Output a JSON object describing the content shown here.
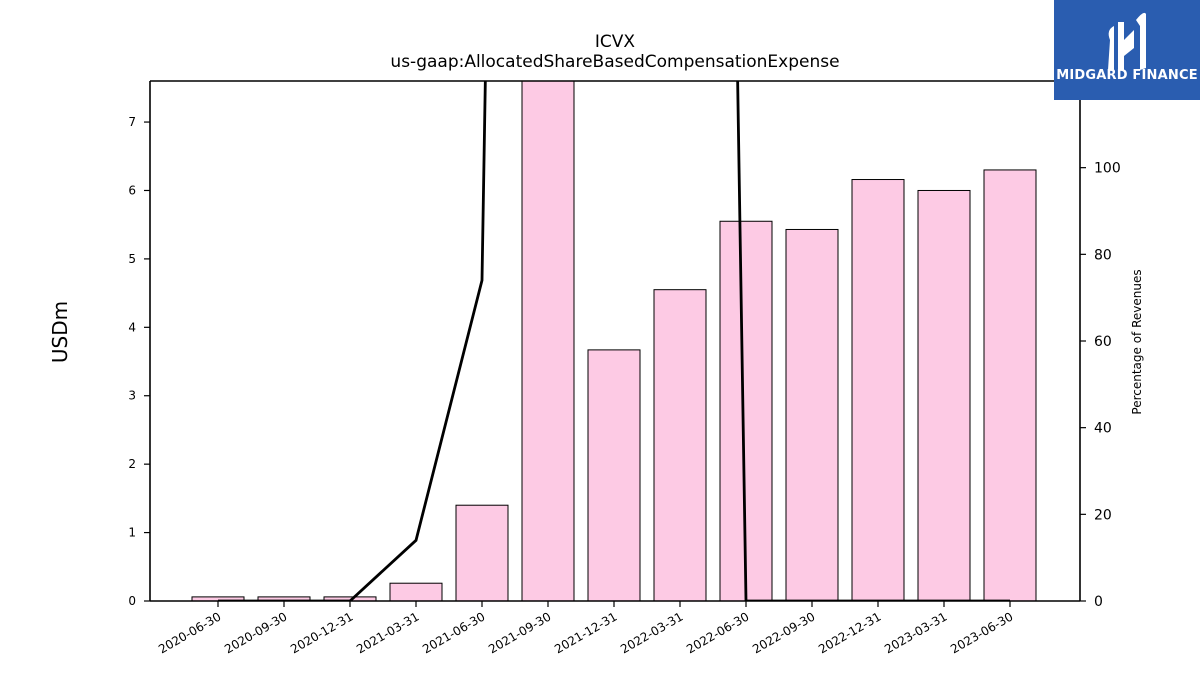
{
  "chart_data": {
    "type": "bar",
    "title": "ICVX",
    "subtitle": "us-gaap:AllocatedShareBasedCompensationExpense",
    "ylabel": "USDm",
    "ylabel_right": "Percentage of Revenues",
    "categories": [
      "2020-06-30",
      "2020-09-30",
      "2020-12-31",
      "2021-03-31",
      "2021-06-30",
      "2021-09-30",
      "2021-12-31",
      "2022-03-31",
      "2022-06-30",
      "2022-09-30",
      "2022-12-31",
      "2023-03-31",
      "2023-06-30"
    ],
    "series": [
      {
        "axis": "left",
        "kind": "bar",
        "values": [
          0.06,
          0.06,
          0.06,
          0.26,
          1.4,
          7.7,
          3.67,
          4.55,
          5.55,
          5.43,
          6.16,
          6.0,
          6.3
        ]
      },
      {
        "axis": "right",
        "kind": "line",
        "values": [
          0,
          0,
          0,
          14,
          74,
          null,
          null,
          null,
          0,
          0,
          0,
          0,
          0
        ]
      }
    ],
    "ylim": [
      0,
      7.6
    ],
    "ylim_right": [
      0,
      120
    ],
    "yticks": [
      0,
      1,
      2,
      3,
      4,
      5,
      6,
      7
    ],
    "yticks_right": [
      0,
      20,
      40,
      60,
      80,
      100
    ],
    "grid": false,
    "colors": {
      "bar_fill": "#fdcae4",
      "bar_edge": "#000000",
      "line": "#000000"
    }
  },
  "logo": {
    "text": "MIDGARD FINANCE",
    "background": "#2a5db0"
  }
}
